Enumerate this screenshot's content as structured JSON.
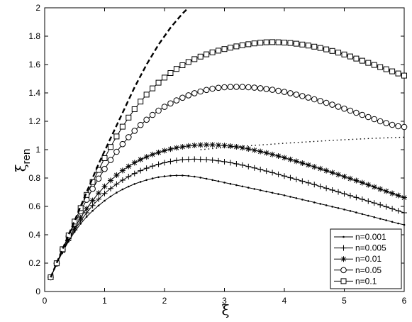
{
  "chart_data": {
    "type": "line",
    "xlabel": "ξ",
    "ylabel_main": "ξ",
    "ylabel_sub": "ren",
    "xlim": [
      0,
      6
    ],
    "ylim": [
      0,
      2
    ],
    "xticks": [
      "0",
      "1",
      "2",
      "3",
      "4",
      "5",
      "6"
    ],
    "yticks": [
      "0",
      "0.2",
      "0.4",
      "0.6",
      "0.8",
      "1",
      "1.2",
      "1.4",
      "1.6",
      "1.8",
      "2"
    ],
    "grid": false,
    "legend_position": "bottom-right",
    "series": [
      {
        "name": "n=0.001",
        "marker": "dot",
        "x": [
          0.1,
          0.2,
          0.3,
          0.4,
          0.5,
          0.6,
          0.7,
          0.8,
          0.9,
          1.0,
          1.1,
          1.2,
          1.3,
          1.4,
          1.5,
          1.6,
          1.7,
          1.8,
          1.9,
          2.0,
          2.1,
          2.2,
          2.3,
          2.4,
          2.5,
          2.6,
          2.7,
          2.8,
          2.9,
          3.0,
          3.1,
          3.2,
          3.3,
          3.4,
          3.5,
          3.6,
          3.7,
          3.8,
          3.9,
          4.0,
          4.1,
          4.2,
          4.3,
          4.4,
          4.5,
          4.6,
          4.7,
          4.8,
          4.9,
          5.0,
          5.1,
          5.2,
          5.3,
          5.4,
          5.5,
          5.6,
          5.7,
          5.8,
          5.9,
          6.0
        ],
        "y": [
          0.1,
          0.194,
          0.279,
          0.355,
          0.421,
          0.478,
          0.527,
          0.569,
          0.606,
          0.64,
          0.67,
          0.697,
          0.72,
          0.74,
          0.758,
          0.773,
          0.786,
          0.797,
          0.806,
          0.812,
          0.816,
          0.818,
          0.818,
          0.815,
          0.81,
          0.803,
          0.795,
          0.786,
          0.777,
          0.768,
          0.759,
          0.75,
          0.741,
          0.732,
          0.723,
          0.714,
          0.705,
          0.696,
          0.687,
          0.678,
          0.668,
          0.658,
          0.648,
          0.638,
          0.628,
          0.618,
          0.608,
          0.598,
          0.588,
          0.578,
          0.568,
          0.557,
          0.546,
          0.535,
          0.524,
          0.513,
          0.502,
          0.491,
          0.48,
          0.47
        ]
      },
      {
        "name": "n=0.005",
        "marker": "plus",
        "x": [
          0.1,
          0.2,
          0.3,
          0.4,
          0.5,
          0.6,
          0.7,
          0.8,
          0.9,
          1.0,
          1.1,
          1.2,
          1.3,
          1.4,
          1.5,
          1.6,
          1.7,
          1.8,
          1.9,
          2.0,
          2.1,
          2.2,
          2.3,
          2.4,
          2.5,
          2.6,
          2.7,
          2.8,
          2.9,
          3.0,
          3.1,
          3.2,
          3.3,
          3.4,
          3.5,
          3.6,
          3.7,
          3.8,
          3.9,
          4.0,
          4.1,
          4.2,
          4.3,
          4.4,
          4.5,
          4.6,
          4.7,
          4.8,
          4.9,
          5.0,
          5.1,
          5.2,
          5.3,
          5.4,
          5.5,
          5.6,
          5.7,
          5.8,
          5.9,
          6.0
        ],
        "y": [
          0.1,
          0.195,
          0.283,
          0.363,
          0.434,
          0.498,
          0.555,
          0.606,
          0.651,
          0.691,
          0.726,
          0.757,
          0.785,
          0.81,
          0.832,
          0.852,
          0.869,
          0.884,
          0.897,
          0.908,
          0.917,
          0.924,
          0.929,
          0.932,
          0.933,
          0.932,
          0.93,
          0.926,
          0.921,
          0.915,
          0.908,
          0.9,
          0.891,
          0.881,
          0.871,
          0.86,
          0.849,
          0.838,
          0.826,
          0.814,
          0.802,
          0.79,
          0.778,
          0.766,
          0.754,
          0.741,
          0.728,
          0.715,
          0.702,
          0.689,
          0.676,
          0.663,
          0.65,
          0.637,
          0.624,
          0.611,
          0.597,
          0.583,
          0.569,
          0.555
        ]
      },
      {
        "name": "n=0.01",
        "marker": "star",
        "x": [
          0.1,
          0.2,
          0.3,
          0.4,
          0.5,
          0.6,
          0.7,
          0.8,
          0.9,
          1.0,
          1.1,
          1.2,
          1.3,
          1.4,
          1.5,
          1.6,
          1.7,
          1.8,
          1.9,
          2.0,
          2.1,
          2.2,
          2.3,
          2.4,
          2.5,
          2.6,
          2.7,
          2.8,
          2.9,
          3.0,
          3.1,
          3.2,
          3.3,
          3.4,
          3.5,
          3.6,
          3.7,
          3.8,
          3.9,
          4.0,
          4.1,
          4.2,
          4.3,
          4.4,
          4.5,
          4.6,
          4.7,
          4.8,
          4.9,
          5.0,
          5.1,
          5.2,
          5.3,
          5.4,
          5.5,
          5.6,
          5.7,
          5.8,
          5.9,
          6.0
        ],
        "y": [
          0.1,
          0.196,
          0.287,
          0.372,
          0.449,
          0.52,
          0.584,
          0.642,
          0.694,
          0.741,
          0.783,
          0.82,
          0.853,
          0.882,
          0.908,
          0.93,
          0.949,
          0.966,
          0.98,
          0.993,
          1.004,
          1.013,
          1.02,
          1.026,
          1.03,
          1.033,
          1.034,
          1.034,
          1.032,
          1.029,
          1.025,
          1.02,
          1.013,
          1.005,
          0.996,
          0.987,
          0.977,
          0.966,
          0.955,
          0.943,
          0.931,
          0.918,
          0.905,
          0.892,
          0.879,
          0.866,
          0.852,
          0.838,
          0.824,
          0.81,
          0.796,
          0.782,
          0.767,
          0.752,
          0.737,
          0.722,
          0.707,
          0.692,
          0.677,
          0.662
        ]
      },
      {
        "name": "n=0.05",
        "marker": "circle",
        "x": [
          0.1,
          0.2,
          0.3,
          0.4,
          0.5,
          0.6,
          0.7,
          0.8,
          0.9,
          1.0,
          1.1,
          1.2,
          1.3,
          1.4,
          1.5,
          1.6,
          1.7,
          1.8,
          1.9,
          2.0,
          2.1,
          2.2,
          2.3,
          2.4,
          2.5,
          2.6,
          2.7,
          2.8,
          2.9,
          3.0,
          3.1,
          3.2,
          3.3,
          3.4,
          3.5,
          3.6,
          3.7,
          3.8,
          3.9,
          4.0,
          4.1,
          4.2,
          4.3,
          4.4,
          4.5,
          4.6,
          4.7,
          4.8,
          4.9,
          5.0,
          5.1,
          5.2,
          5.3,
          5.4,
          5.5,
          5.6,
          5.7,
          5.8,
          5.9,
          6.0
        ],
        "y": [
          0.1,
          0.198,
          0.295,
          0.389,
          0.479,
          0.565,
          0.647,
          0.724,
          0.796,
          0.864,
          0.927,
          0.985,
          1.039,
          1.088,
          1.133,
          1.174,
          1.211,
          1.245,
          1.275,
          1.302,
          1.326,
          1.347,
          1.366,
          1.383,
          1.398,
          1.41,
          1.421,
          1.43,
          1.436,
          1.44,
          1.442,
          1.443,
          1.442,
          1.44,
          1.437,
          1.433,
          1.428,
          1.422,
          1.415,
          1.407,
          1.398,
          1.388,
          1.378,
          1.367,
          1.355,
          1.343,
          1.33,
          1.317,
          1.303,
          1.289,
          1.275,
          1.26,
          1.245,
          1.23,
          1.215,
          1.2,
          1.187,
          1.175,
          1.165,
          1.16
        ]
      },
      {
        "name": "n=0.1",
        "marker": "square",
        "x": [
          0.1,
          0.2,
          0.3,
          0.4,
          0.5,
          0.6,
          0.7,
          0.8,
          0.9,
          1.0,
          1.1,
          1.2,
          1.3,
          1.4,
          1.5,
          1.6,
          1.7,
          1.8,
          1.9,
          2.0,
          2.1,
          2.2,
          2.3,
          2.4,
          2.5,
          2.6,
          2.7,
          2.8,
          2.9,
          3.0,
          3.1,
          3.2,
          3.3,
          3.4,
          3.5,
          3.6,
          3.7,
          3.8,
          3.9,
          4.0,
          4.1,
          4.2,
          4.3,
          4.4,
          4.5,
          4.6,
          4.7,
          4.8,
          4.9,
          5.0,
          5.1,
          5.2,
          5.3,
          5.4,
          5.5,
          5.6,
          5.7,
          5.8,
          5.9,
          6.0
        ],
        "y": [
          0.1,
          0.199,
          0.298,
          0.396,
          0.493,
          0.588,
          0.681,
          0.771,
          0.857,
          0.94,
          1.019,
          1.093,
          1.162,
          1.226,
          1.285,
          1.339,
          1.388,
          1.432,
          1.472,
          1.508,
          1.54,
          1.569,
          1.595,
          1.618,
          1.638,
          1.656,
          1.672,
          1.686,
          1.698,
          1.709,
          1.719,
          1.728,
          1.736,
          1.743,
          1.749,
          1.754,
          1.757,
          1.758,
          1.757,
          1.755,
          1.752,
          1.747,
          1.741,
          1.734,
          1.726,
          1.717,
          1.707,
          1.696,
          1.684,
          1.671,
          1.657,
          1.642,
          1.627,
          1.612,
          1.597,
          1.582,
          1.567,
          1.552,
          1.537,
          1.522
        ]
      },
      {
        "marker": "none",
        "linestyle": "dashed",
        "x": [
          0.1,
          0.2,
          0.3,
          0.4,
          0.5,
          0.6,
          0.7,
          0.8,
          0.9,
          1.0,
          1.1,
          1.2,
          1.3,
          1.4,
          1.5,
          1.6,
          1.7,
          1.8,
          1.9,
          2.0,
          2.1,
          2.2,
          2.3,
          2.4,
          2.5
        ],
        "y": [
          0.1,
          0.2,
          0.3,
          0.4,
          0.5,
          0.6,
          0.7,
          0.8,
          0.9,
          0.99,
          1.08,
          1.17,
          1.26,
          1.35,
          1.44,
          1.52,
          1.6,
          1.67,
          1.74,
          1.8,
          1.86,
          1.91,
          1.96,
          2.0,
          2.04
        ]
      },
      {
        "marker": "none",
        "linestyle": "dotted",
        "x": [
          2.6,
          3.0,
          3.5,
          4.0,
          4.5,
          5.0,
          5.5,
          6.0
        ],
        "y": [
          1.0,
          1.015,
          1.03,
          1.045,
          1.058,
          1.07,
          1.08,
          1.088
        ]
      }
    ]
  }
}
